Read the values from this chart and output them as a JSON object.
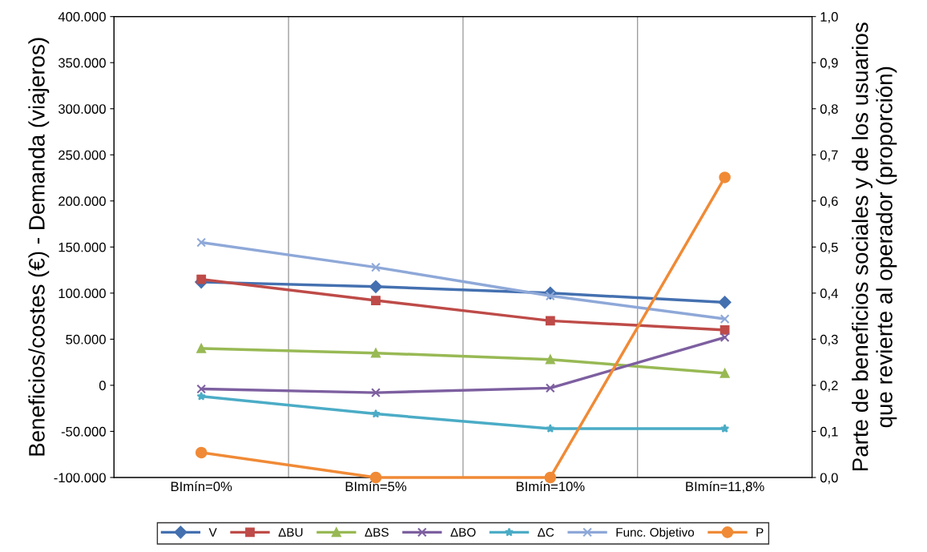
{
  "chart_data": {
    "type": "line",
    "categories": [
      "BImín=0%",
      "BImín=5%",
      "BImín=10%",
      "BImín=11,8%"
    ],
    "ylabel": "Beneficios/costes (€) - Demanda (viajeros)",
    "y2label": "Parte de beneficios sociales y de los usuarios\nque revierte al operador (proporción)",
    "ylim": [
      -100000,
      400000
    ],
    "yticks": [
      {
        "value": -100000,
        "label": "-100.000"
      },
      {
        "value": -50000,
        "label": "-50.000"
      },
      {
        "value": 0,
        "label": "0"
      },
      {
        "value": 50000,
        "label": "50.000"
      },
      {
        "value": 100000,
        "label": "100.000"
      },
      {
        "value": 150000,
        "label": "150.000"
      },
      {
        "value": 200000,
        "label": "200.000"
      },
      {
        "value": 250000,
        "label": "250.000"
      },
      {
        "value": 300000,
        "label": "300.000"
      },
      {
        "value": 350000,
        "label": "350.000"
      },
      {
        "value": 400000,
        "label": "400.000"
      }
    ],
    "y2lim": [
      0,
      1
    ],
    "y2ticks": [
      {
        "value": 0,
        "label": "0,0"
      },
      {
        "value": 0.1,
        "label": "0,1"
      },
      {
        "value": 0.2,
        "label": "0,2"
      },
      {
        "value": 0.3,
        "label": "0,3"
      },
      {
        "value": 0.4,
        "label": "0,4"
      },
      {
        "value": 0.5,
        "label": "0,5"
      },
      {
        "value": 0.6,
        "label": "0,6"
      },
      {
        "value": 0.7,
        "label": "0,7"
      },
      {
        "value": 0.8,
        "label": "0,8"
      },
      {
        "value": 0.9,
        "label": "0,9"
      },
      {
        "value": 1,
        "label": "1,0"
      }
    ],
    "grid": "x",
    "legend": "bottom",
    "series": [
      {
        "name": "V",
        "color": "#4470b0",
        "marker": "diamond",
        "values": [
          112000,
          107000,
          100000,
          90000
        ]
      },
      {
        "name": "ΔBU",
        "color": "#be4b48",
        "marker": "square",
        "values": [
          115000,
          92000,
          70000,
          60000
        ]
      },
      {
        "name": "ΔBS",
        "color": "#98b954",
        "marker": "triangle",
        "values": [
          40000,
          35000,
          28000,
          13000
        ]
      },
      {
        "name": "ΔBO",
        "color": "#7d5fa0",
        "marker": "cross",
        "values": [
          -4000,
          -8000,
          -3000,
          52000
        ]
      },
      {
        "name": "ΔC",
        "color": "#4bacc6",
        "marker": "star",
        "values": [
          -12000,
          -31000,
          -47000,
          -47000
        ]
      },
      {
        "name": "Func. Objetivo",
        "color": "#8ea8d8",
        "marker": "cross",
        "values": [
          155000,
          128000,
          97000,
          72000
        ]
      },
      {
        "name": "P",
        "color": "#f08a36",
        "marker": "circle",
        "axis": "y2",
        "values": [
          0.054,
          0,
          0,
          0.651
        ]
      }
    ]
  }
}
